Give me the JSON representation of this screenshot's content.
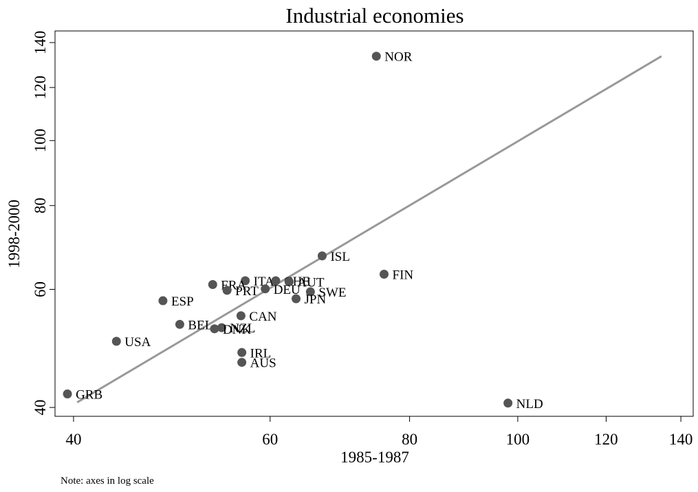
{
  "chart_data": {
    "type": "scatter",
    "title": "Industrial economies",
    "xlabel": "1985-1987",
    "ylabel": "1998-2000",
    "note": "Note: axes in log scale",
    "log_x": true,
    "log_y": true,
    "xlim": [
      38.5,
      143.6
    ],
    "ylim": [
      38.8,
      145.7
    ],
    "xticks": [
      40,
      60,
      80,
      100,
      120,
      140
    ],
    "yticks": [
      40,
      60,
      80,
      100,
      120,
      140
    ],
    "labels": [
      "NOR",
      "ISL",
      "FIN",
      "ITA",
      "CHE",
      "AUT",
      "FRA",
      "PRT",
      "DEU",
      "SWE",
      "JPN",
      "ESP",
      "CAN",
      "BEL",
      "NZL",
      "DNK",
      "USA",
      "IRL",
      "AUS",
      "GRB",
      "NLD"
    ],
    "x": [
      74.7,
      66.8,
      75.9,
      57.0,
      60.7,
      62.4,
      53.3,
      54.9,
      59.4,
      65.2,
      63.3,
      48.1,
      56.5,
      49.8,
      54.3,
      53.5,
      43.7,
      56.6,
      56.6,
      39.5,
      98.0
    ],
    "y": [
      133.6,
      67.3,
      63.2,
      61.8,
      61.8,
      61.6,
      61.0,
      59.8,
      60.1,
      59.5,
      58.1,
      57.7,
      54.8,
      53.2,
      52.6,
      52.4,
      50.2,
      48.3,
      46.7,
      41.9,
      40.6
    ],
    "color": "#555555",
    "fit_line": {
      "x": [
        40.3,
        134.5
      ],
      "y": [
        40.7,
        133.6
      ],
      "color": "#999999"
    }
  }
}
